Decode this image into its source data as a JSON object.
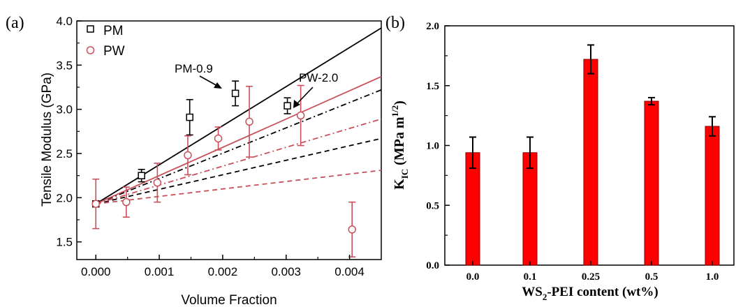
{
  "panels": {
    "a_label": "(a)",
    "b_label": "(b)"
  },
  "chart_data": [
    {
      "type": "scatter",
      "panel": "(a)",
      "title": "",
      "xlabel": "Volume Fraction",
      "ylabel": "Tensile Modulus (GPa)",
      "xlim": [
        -0.0003,
        0.0045
      ],
      "ylim": [
        1.3,
        4.0
      ],
      "x_ticks": [
        {
          "value": 0.0,
          "label": "0.000"
        },
        {
          "value": 0.001,
          "label": "0.001"
        },
        {
          "value": 0.002,
          "label": "0.002"
        },
        {
          "value": 0.003,
          "label": "0.003"
        },
        {
          "value": 0.004,
          "label": "0.004"
        }
      ],
      "y_ticks": [
        {
          "value": 1.5,
          "label": "1.5"
        },
        {
          "value": 2.0,
          "label": "2.0"
        },
        {
          "value": 2.5,
          "label": "2.5"
        },
        {
          "value": 3.0,
          "label": "3.0"
        },
        {
          "value": 3.5,
          "label": "3.5"
        },
        {
          "value": 4.0,
          "label": "4.0"
        }
      ],
      "legend_position": "top-left",
      "series": [
        {
          "name": "PM",
          "marker": "square",
          "color": "#000000",
          "points": [
            {
              "x": 0.0,
              "y": 1.93,
              "err": 0.0
            },
            {
              "x": 0.00072,
              "y": 2.25,
              "err": 0.07
            },
            {
              "x": 0.00148,
              "y": 2.91,
              "err": 0.2
            },
            {
              "x": 0.0022,
              "y": 3.18,
              "err": 0.14
            },
            {
              "x": 0.00302,
              "y": 3.04,
              "err": 0.09
            }
          ]
        },
        {
          "name": "PW",
          "marker": "circle",
          "color": "#c8505a",
          "points": [
            {
              "x": 0.0,
              "y": 1.93,
              "err": 0.28
            },
            {
              "x": 0.00048,
              "y": 1.95,
              "err": 0.17
            },
            {
              "x": 0.00097,
              "y": 2.17,
              "err": 0.22
            },
            {
              "x": 0.00145,
              "y": 2.48,
              "err": 0.22
            },
            {
              "x": 0.00193,
              "y": 2.67,
              "err": 0.13
            },
            {
              "x": 0.00242,
              "y": 2.86,
              "err": 0.4
            },
            {
              "x": 0.00323,
              "y": 2.93,
              "err": 0.34
            },
            {
              "x": 0.00404,
              "y": 1.64,
              "err": 0.31
            }
          ]
        }
      ],
      "lines": [
        {
          "color": "#000000",
          "style": "solid",
          "from": [
            0.0,
            1.93
          ],
          "to": [
            0.0045,
            3.92
          ]
        },
        {
          "color": "#000000",
          "style": "dashdot",
          "from": [
            0.0,
            1.93
          ],
          "to": [
            0.0045,
            3.22
          ]
        },
        {
          "color": "#000000",
          "style": "dashed",
          "from": [
            0.0,
            1.93
          ],
          "to": [
            0.0045,
            2.67
          ]
        },
        {
          "color": "#c8505a",
          "style": "solid",
          "from": [
            0.0,
            1.93
          ],
          "to": [
            0.0045,
            3.37
          ]
        },
        {
          "color": "#c8505a",
          "style": "dashdot",
          "from": [
            0.0,
            1.93
          ],
          "to": [
            0.0045,
            2.89
          ]
        },
        {
          "color": "#c8505a",
          "style": "dashed",
          "from": [
            0.0,
            1.93
          ],
          "to": [
            0.0045,
            2.31
          ]
        }
      ],
      "annotations": [
        {
          "text": "PM-0.9",
          "target": [
            0.0022,
            3.18
          ]
        },
        {
          "text": "PW-2.0",
          "target": [
            0.00323,
            2.93
          ]
        }
      ]
    },
    {
      "type": "bar",
      "panel": "(b)",
      "title": "",
      "xlabel_main": "WS",
      "xlabel_sub": "2",
      "xlabel_rest": "-PEI content (wt%)",
      "ylabel_main": "K",
      "ylabel_sub": "IC",
      "ylabel_rest": " (MPa m",
      "ylabel_sup": "1/2",
      "ylabel_close": ")",
      "ylim": [
        0,
        2.0
      ],
      "y_ticks": [
        {
          "value": 0.0,
          "label": "0.0"
        },
        {
          "value": 0.5,
          "label": "0.5"
        },
        {
          "value": 1.0,
          "label": "1.0"
        },
        {
          "value": 1.5,
          "label": "1.5"
        },
        {
          "value": 2.0,
          "label": "2.0"
        }
      ],
      "categories": [
        "0.0",
        "0.1",
        "0.25",
        "0.5",
        "1.0"
      ],
      "values": [
        0.94,
        0.94,
        1.72,
        1.37,
        1.16
      ],
      "errors": [
        0.13,
        0.13,
        0.12,
        0.03,
        0.08
      ],
      "color": "#ff0000"
    }
  ]
}
